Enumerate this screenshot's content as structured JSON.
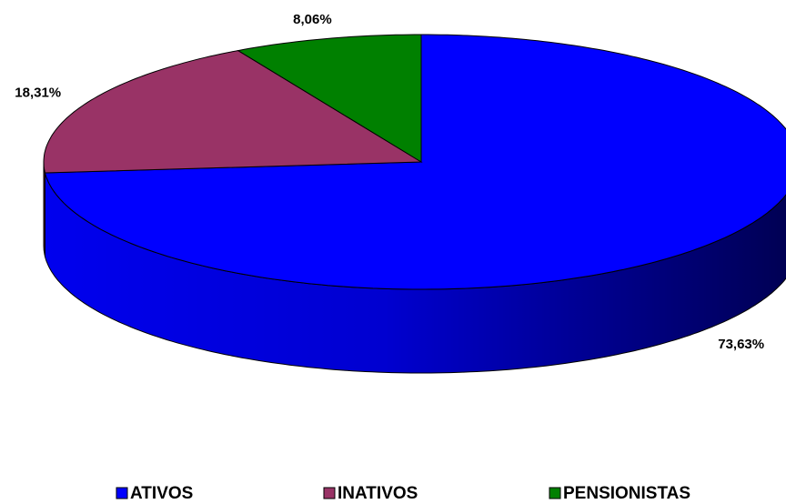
{
  "chart_data": {
    "type": "pie3d",
    "categories": [
      "ATIVOS",
      "INATIVOS",
      "PENSIONISTAS"
    ],
    "values": [
      73.63,
      18.31,
      8.06
    ],
    "value_labels": [
      "73,63%",
      "18,31%",
      "8,06%"
    ],
    "colors": [
      "#0000ff",
      "#993366",
      "#008000"
    ],
    "legend": "bottom"
  }
}
